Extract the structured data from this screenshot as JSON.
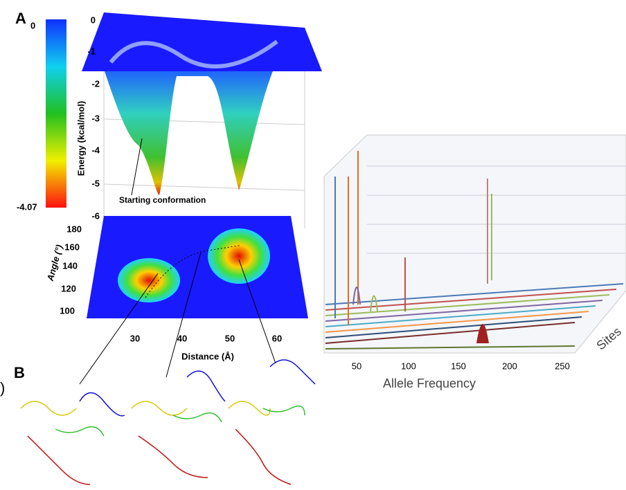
{
  "panel_a": {
    "label": "A",
    "colorbar": {
      "max_label": "0",
      "min_label": "-4.07"
    },
    "energy_axis": {
      "title": "Energy (kcal/mol)",
      "ticks": [
        "0",
        "-1",
        "-2",
        "-3",
        "-4",
        "-5",
        "-6"
      ]
    },
    "annotation": "Starting conformation",
    "angle_axis": {
      "title": "Angle (°)",
      "ticks": [
        "180",
        "160",
        "140",
        "120",
        "100"
      ]
    },
    "distance_axis": {
      "title": "Distance (Å)",
      "ticks": [
        "30",
        "40",
        "50",
        "60"
      ]
    }
  },
  "panel_b": {
    "label": "B"
  },
  "edge_fragment": ")",
  "right_chart": {
    "x_axis": {
      "title": "Allele Frequency",
      "ticks": [
        "50",
        "100",
        "150",
        "200",
        "250"
      ]
    },
    "depth_axis": {
      "title": "Sites"
    }
  }
}
